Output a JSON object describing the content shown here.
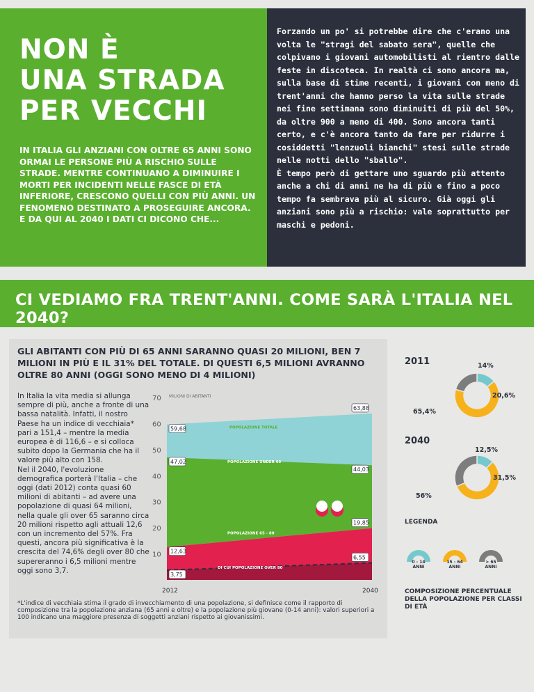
{
  "header": {
    "title_lines": [
      "NON È",
      "UNA STRADA",
      "PER VECCHI"
    ],
    "intro": "In Italia gli anziani con oltre 65 anni sono ormai le persone più a rischio sulle strade. Mentre continuano a diminuire i morti per incidenti nelle fasce di età inferiore, crescono quelli con più anni. Un fenomeno destinato a proseguire ancora.\nE da qui al 2040 i dati ci dicono che...",
    "side_text": "Forzando un po' si potrebbe dire che c'erano una volta le \"stragi del sabato sera\", quelle che colpivano i giovani automobilisti al rientro dalle feste in discoteca. In realtà ci sono ancora ma, sulla base di stime recenti, i giovani con meno di trent'anni che hanno perso la vita sulle strade nei fine settimana sono diminuiti di più del 50%, da oltre 900 a meno di 400. Sono ancora tanti certo, e c'è ancora tanto da fare per ridurre i cosiddetti \"lenzuoli bianchi\" stesi sulle strade nelle notti dello \"sballo\".\nÈ tempo però di gettare uno sguardo più attento anche a chi di anni ne ha di più e fino a poco tempo fa sembrava più al sicuro. Già oggi gli anziani sono più a rischio: vale soprattutto per maschi e pedoni."
  },
  "banner": "CI VEDIAMO FRA TRENT'ANNI. COME SARÀ L'ITALIA NEL 2040?",
  "section": {
    "headline": "Gli abitanti con più di 65 anni saranno quasi 20 milioni, ben 7 milioni in più e il 31% del totale. Di questi 6,5 milioni avranno oltre 80 anni (oggi sono meno di 4 milioni)",
    "body": "In Italia la vita media si allunga sempre di più, anche a fronte di una bassa natalità. Infatti, il nostro Paese ha un indice di vecchiaia* pari a 151,4 – mentre la media europea è di 116,6 – e si colloca subito dopo la Germania che ha il valore più alto con 158.\nNel il 2040, l'evoluzione demografica porterà l'Italia – che oggi (dati 2012) conta quasi 60 milioni di abitanti – ad avere una popolazione di quasi 64 milioni, nella quale gli over 65 saranno circa 20 milioni rispetto agli attuali 12,6 con un incremento del 57%. Fra questi, ancora più significativa è la crescita del 74,6% degli over 80 che supereranno i 6,5 milioni mentre oggi sono 3,7.",
    "footnote": "*L'indice di vecchiaia stima il grado di invecchiamento di una popolazione, si definisce come il rapporto di composizione tra la popolazione anziana (65 anni e oltre) e la popolazione più giovane (0-14 anni): valori superiori a 100 indicano una maggiore presenza di soggetti anziani rispetto ai giovanissimi."
  },
  "chart_data": [
    {
      "type": "area",
      "ylabel": "MILIONI DI ABITANTI",
      "ylim": [
        0,
        70
      ],
      "yticks": [
        "70",
        "60",
        "50",
        "40",
        "30",
        "20",
        "10"
      ],
      "x": [
        "2012",
        "2040"
      ],
      "series": [
        {
          "name": "POPOLAZIONE TOTALE",
          "values": [
            59.68,
            63.88
          ],
          "labels": [
            "59,68",
            "63,88"
          ],
          "color": "#8fd3d6"
        },
        {
          "name": "POPOLAZIONE UNDER 65",
          "values": [
            47.02,
            44.03
          ],
          "labels": [
            "47,02",
            "44,03"
          ],
          "color": "#5aaf2f"
        },
        {
          "name": "POPOLAZIONE 65 - 80",
          "values": [
            12.63,
            19.85
          ],
          "labels": [
            "12,63",
            "19,85"
          ],
          "color": "#e2214f"
        },
        {
          "name": "DI CUI POPOLAZIONE OVER 80",
          "values": [
            3.75,
            6.55
          ],
          "labels": [
            "3,75",
            "6,55"
          ],
          "color": "#a3183d"
        }
      ]
    },
    {
      "type": "pie",
      "title": "2011",
      "slices": [
        {
          "label": "0 - 14 ANNI",
          "value": 14,
          "text": "14%",
          "color": "#75c9cc"
        },
        {
          "label": "15 - 64 ANNI",
          "value": 65.4,
          "text": "65,4%",
          "color": "#f7b21b"
        },
        {
          "label": "> 65 ANNI",
          "value": 20.6,
          "text": "20,6%",
          "color": "#7d7d7d"
        }
      ]
    },
    {
      "type": "pie",
      "title": "2040",
      "slices": [
        {
          "label": "0 - 14 ANNI",
          "value": 12.5,
          "text": "12,5%",
          "color": "#75c9cc"
        },
        {
          "label": "15 - 64 ANNI",
          "value": 56,
          "text": "56%",
          "color": "#f7b21b"
        },
        {
          "label": "> 65 ANNI",
          "value": 31.5,
          "text": "31,5%",
          "color": "#7d7d7d"
        }
      ]
    }
  ],
  "legend": {
    "title": "LEGENDA",
    "items": [
      "0 - 14 ANNI",
      "15 - 64 ANNI",
      "> 65 ANNI"
    ],
    "caption": "Composizione percentuale della popolazione per classi di età"
  }
}
